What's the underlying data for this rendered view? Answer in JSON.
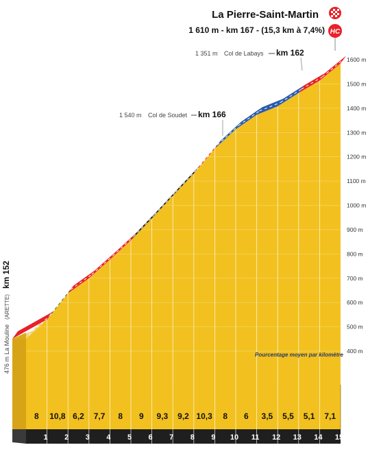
{
  "chart_data": {
    "type": "area",
    "title": "La Pierre-Saint-Martin",
    "subtitle": "1 610 m - km 167 - (15,3 km à 7,4%)",
    "category_badge": "HC",
    "note": "Pourcentage moyen par kilomètre",
    "start": {
      "altitude_label": "476 m",
      "place": "La Mouline",
      "place_detail": "(ARETTE)",
      "km_label": "km 152"
    },
    "annotations": [
      {
        "altitude_label": "1 351 m",
        "name": "Col de Labays",
        "km_label": "km 162",
        "km": 10,
        "altitude": 1351
      },
      {
        "altitude_label": "1 540 m",
        "name": "Col de Soudet",
        "km_label": "km 166",
        "km": 14,
        "altitude": 1540
      }
    ],
    "y_ticks": [
      "400 m",
      "500 m",
      "600 m",
      "700 m",
      "800 m",
      "900 m",
      "1000 m",
      "1100 m",
      "1200 m",
      "1300 m",
      "1400 m",
      "1500 m",
      "1600 m"
    ],
    "y_tick_values": [
      400,
      500,
      600,
      700,
      800,
      900,
      1000,
      1100,
      1200,
      1300,
      1400,
      1500,
      1600
    ],
    "ylim": [
      300,
      1650
    ],
    "km_labels": [
      "1",
      "2",
      "3",
      "4",
      "5",
      "6",
      "7",
      "8",
      "9",
      "10",
      "11",
      "12",
      "13",
      "14",
      "15"
    ],
    "gradients": [
      "8",
      "10,8",
      "6,2",
      "7,7",
      "8",
      "9",
      "9,3",
      "9,2",
      "10,3",
      "8",
      "6",
      "3,5",
      "5,5",
      "5,1",
      "7,1"
    ],
    "gradient_values": [
      8,
      10.8,
      6.2,
      7.7,
      8,
      9,
      9.3,
      9.2,
      10.3,
      8,
      6,
      3.5,
      5.5,
      5.1,
      7.1
    ],
    "segment_colors": [
      "#e8212a",
      "#1c1c1c",
      "#e8212a",
      "#e8212a",
      "#e8212a",
      "#1c1c1c",
      "#1c1c1c",
      "#1c1c1c",
      "#e8212a",
      "#2a5cb0",
      "#2a5cb0",
      "#2a5cb0",
      "#2a5cb0",
      "#e8212a",
      "#e8212a"
    ],
    "colors": {
      "fill": "#f2c11f",
      "side": "#d6a416",
      "base": "#1f1f1f",
      "grid": "#ffffff"
    }
  }
}
